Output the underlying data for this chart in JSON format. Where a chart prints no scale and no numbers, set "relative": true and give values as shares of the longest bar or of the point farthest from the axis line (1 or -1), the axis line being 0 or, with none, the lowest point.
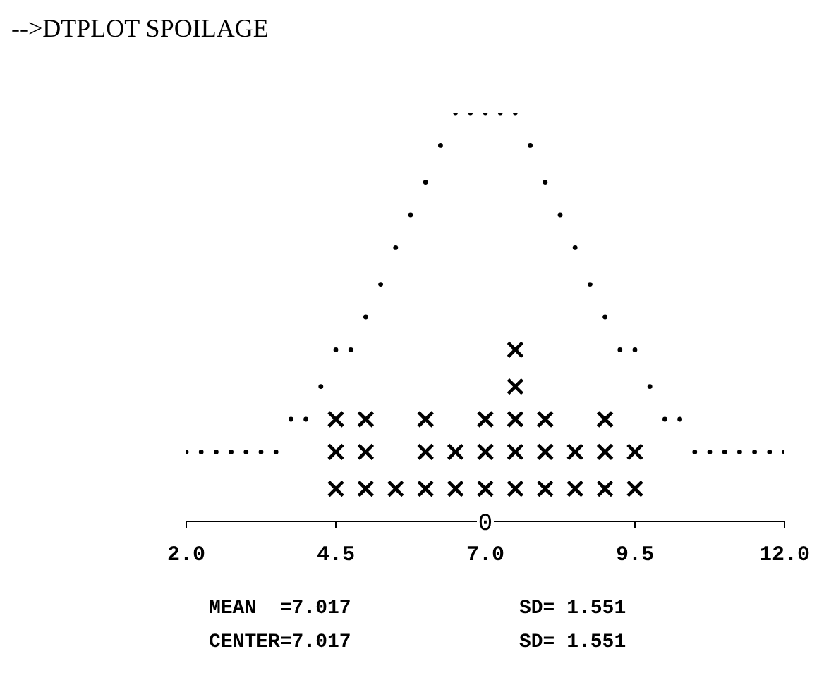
{
  "chart_data": {
    "type": "scatter",
    "title": "-->DTPLOT  SPOILAGE",
    "relative": true,
    "xlim": [
      2.0,
      12.0
    ],
    "xticks": [
      {
        "value": 2,
        "label": "2.0"
      },
      {
        "value": 4.5,
        "label": "4.5"
      },
      {
        "value": 7,
        "label": "7.0"
      },
      {
        "value": 9.5,
        "label": "9.5"
      },
      {
        "value": 12,
        "label": "12.0"
      }
    ],
    "series": [
      {
        "type": "scatter",
        "marker": "cross",
        "color": "#000000",
        "x": [
          4.5,
          4.5,
          4.5,
          5.0,
          5.0,
          5.0,
          5.5,
          6.0,
          6.0,
          6.0,
          6.5,
          6.5,
          7.0,
          7.0,
          7.0,
          7.5,
          7.5,
          7.5,
          7.5,
          7.5,
          8.0,
          8.0,
          8.0,
          8.5,
          8.5,
          9.0,
          9.0,
          9.0,
          9.5,
          9.5
        ],
        "values": [
          0.08,
          0.17,
          0.25,
          0.08,
          0.17,
          0.25,
          0.08,
          0.08,
          0.17,
          0.25,
          0.08,
          0.17,
          0.08,
          0.17,
          0.25,
          0.08,
          0.17,
          0.25,
          0.33,
          0.42,
          0.08,
          0.17,
          0.25,
          0.08,
          0.17,
          0.08,
          0.17,
          0.25,
          0.08,
          0.17
        ]
      },
      {
        "type": "scatter",
        "marker": "circle",
        "color": "#000000",
        "x": [
          2.0,
          2.25,
          2.5,
          2.75,
          3.0,
          3.25,
          3.5,
          3.75,
          4.0,
          4.25,
          4.5,
          4.75,
          5.0,
          5.25,
          5.5,
          5.75,
          6.0,
          6.25,
          6.5,
          6.75,
          7.0,
          7.25,
          7.5,
          7.75,
          8.0,
          8.25,
          8.5,
          8.75,
          9.0,
          9.25,
          9.5,
          9.75,
          10.0,
          10.25,
          10.5,
          10.75,
          11.0,
          11.25,
          11.5,
          11.75,
          12.0
        ],
        "values": [
          0.17,
          0.17,
          0.17,
          0.17,
          0.17,
          0.17,
          0.17,
          0.25,
          0.25,
          0.33,
          0.42,
          0.42,
          0.5,
          0.58,
          0.67,
          0.75,
          0.83,
          0.92,
          1,
          1,
          1,
          1,
          1,
          0.92,
          0.83,
          0.75,
          0.67,
          0.58,
          0.5,
          0.42,
          0.42,
          0.33,
          0.25,
          0.25,
          0.17,
          0.17,
          0.17,
          0.17,
          0.17,
          0.17,
          0.17
        ]
      }
    ],
    "annotations": [
      {
        "text": "0",
        "x": 7.0,
        "y": 0
      },
      "MEAN  =7.017",
      "SD= 1.551",
      "CENTER=7.017",
      "SD= 1.551"
    ]
  }
}
